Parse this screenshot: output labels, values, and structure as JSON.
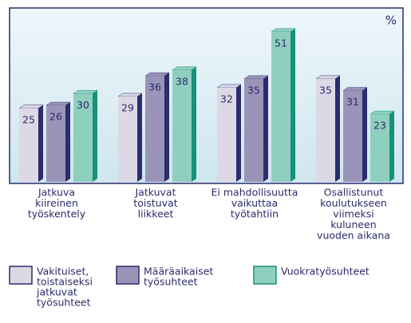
{
  "chart_data": {
    "type": "bar",
    "unit": "%",
    "categories": [
      [
        "Jatkuva",
        "kiireinen",
        "työskentely"
      ],
      [
        "Jatkuvat",
        "toistuvat",
        "liikkeet"
      ],
      [
        "Ei mahdollisuutta",
        "vaikuttaa",
        "työtahtiin"
      ],
      [
        "Osallistunut",
        "koulutukseen",
        "viimeksi",
        "kuluneen",
        "vuoden aikana"
      ]
    ],
    "series": [
      {
        "name": [
          "Vakituiset,",
          "toistaiseksi",
          "jatkuvat",
          "työsuhteet"
        ],
        "color": "#dcd8e6",
        "side_color": "#2c2c6e",
        "values": [
          25,
          29,
          32,
          35
        ]
      },
      {
        "name": [
          "Määräaikaiset",
          "työsuhteet"
        ],
        "color": "#9b94b9",
        "side_color": "#2c2c6e",
        "values": [
          26,
          36,
          35,
          31
        ]
      },
      {
        "name": [
          "Vuokratyösuhteet"
        ],
        "color": "#8fcfbe",
        "side_color": "#17917b",
        "values": [
          30,
          38,
          51,
          23
        ]
      }
    ],
    "ylim": [
      0,
      58
    ]
  }
}
